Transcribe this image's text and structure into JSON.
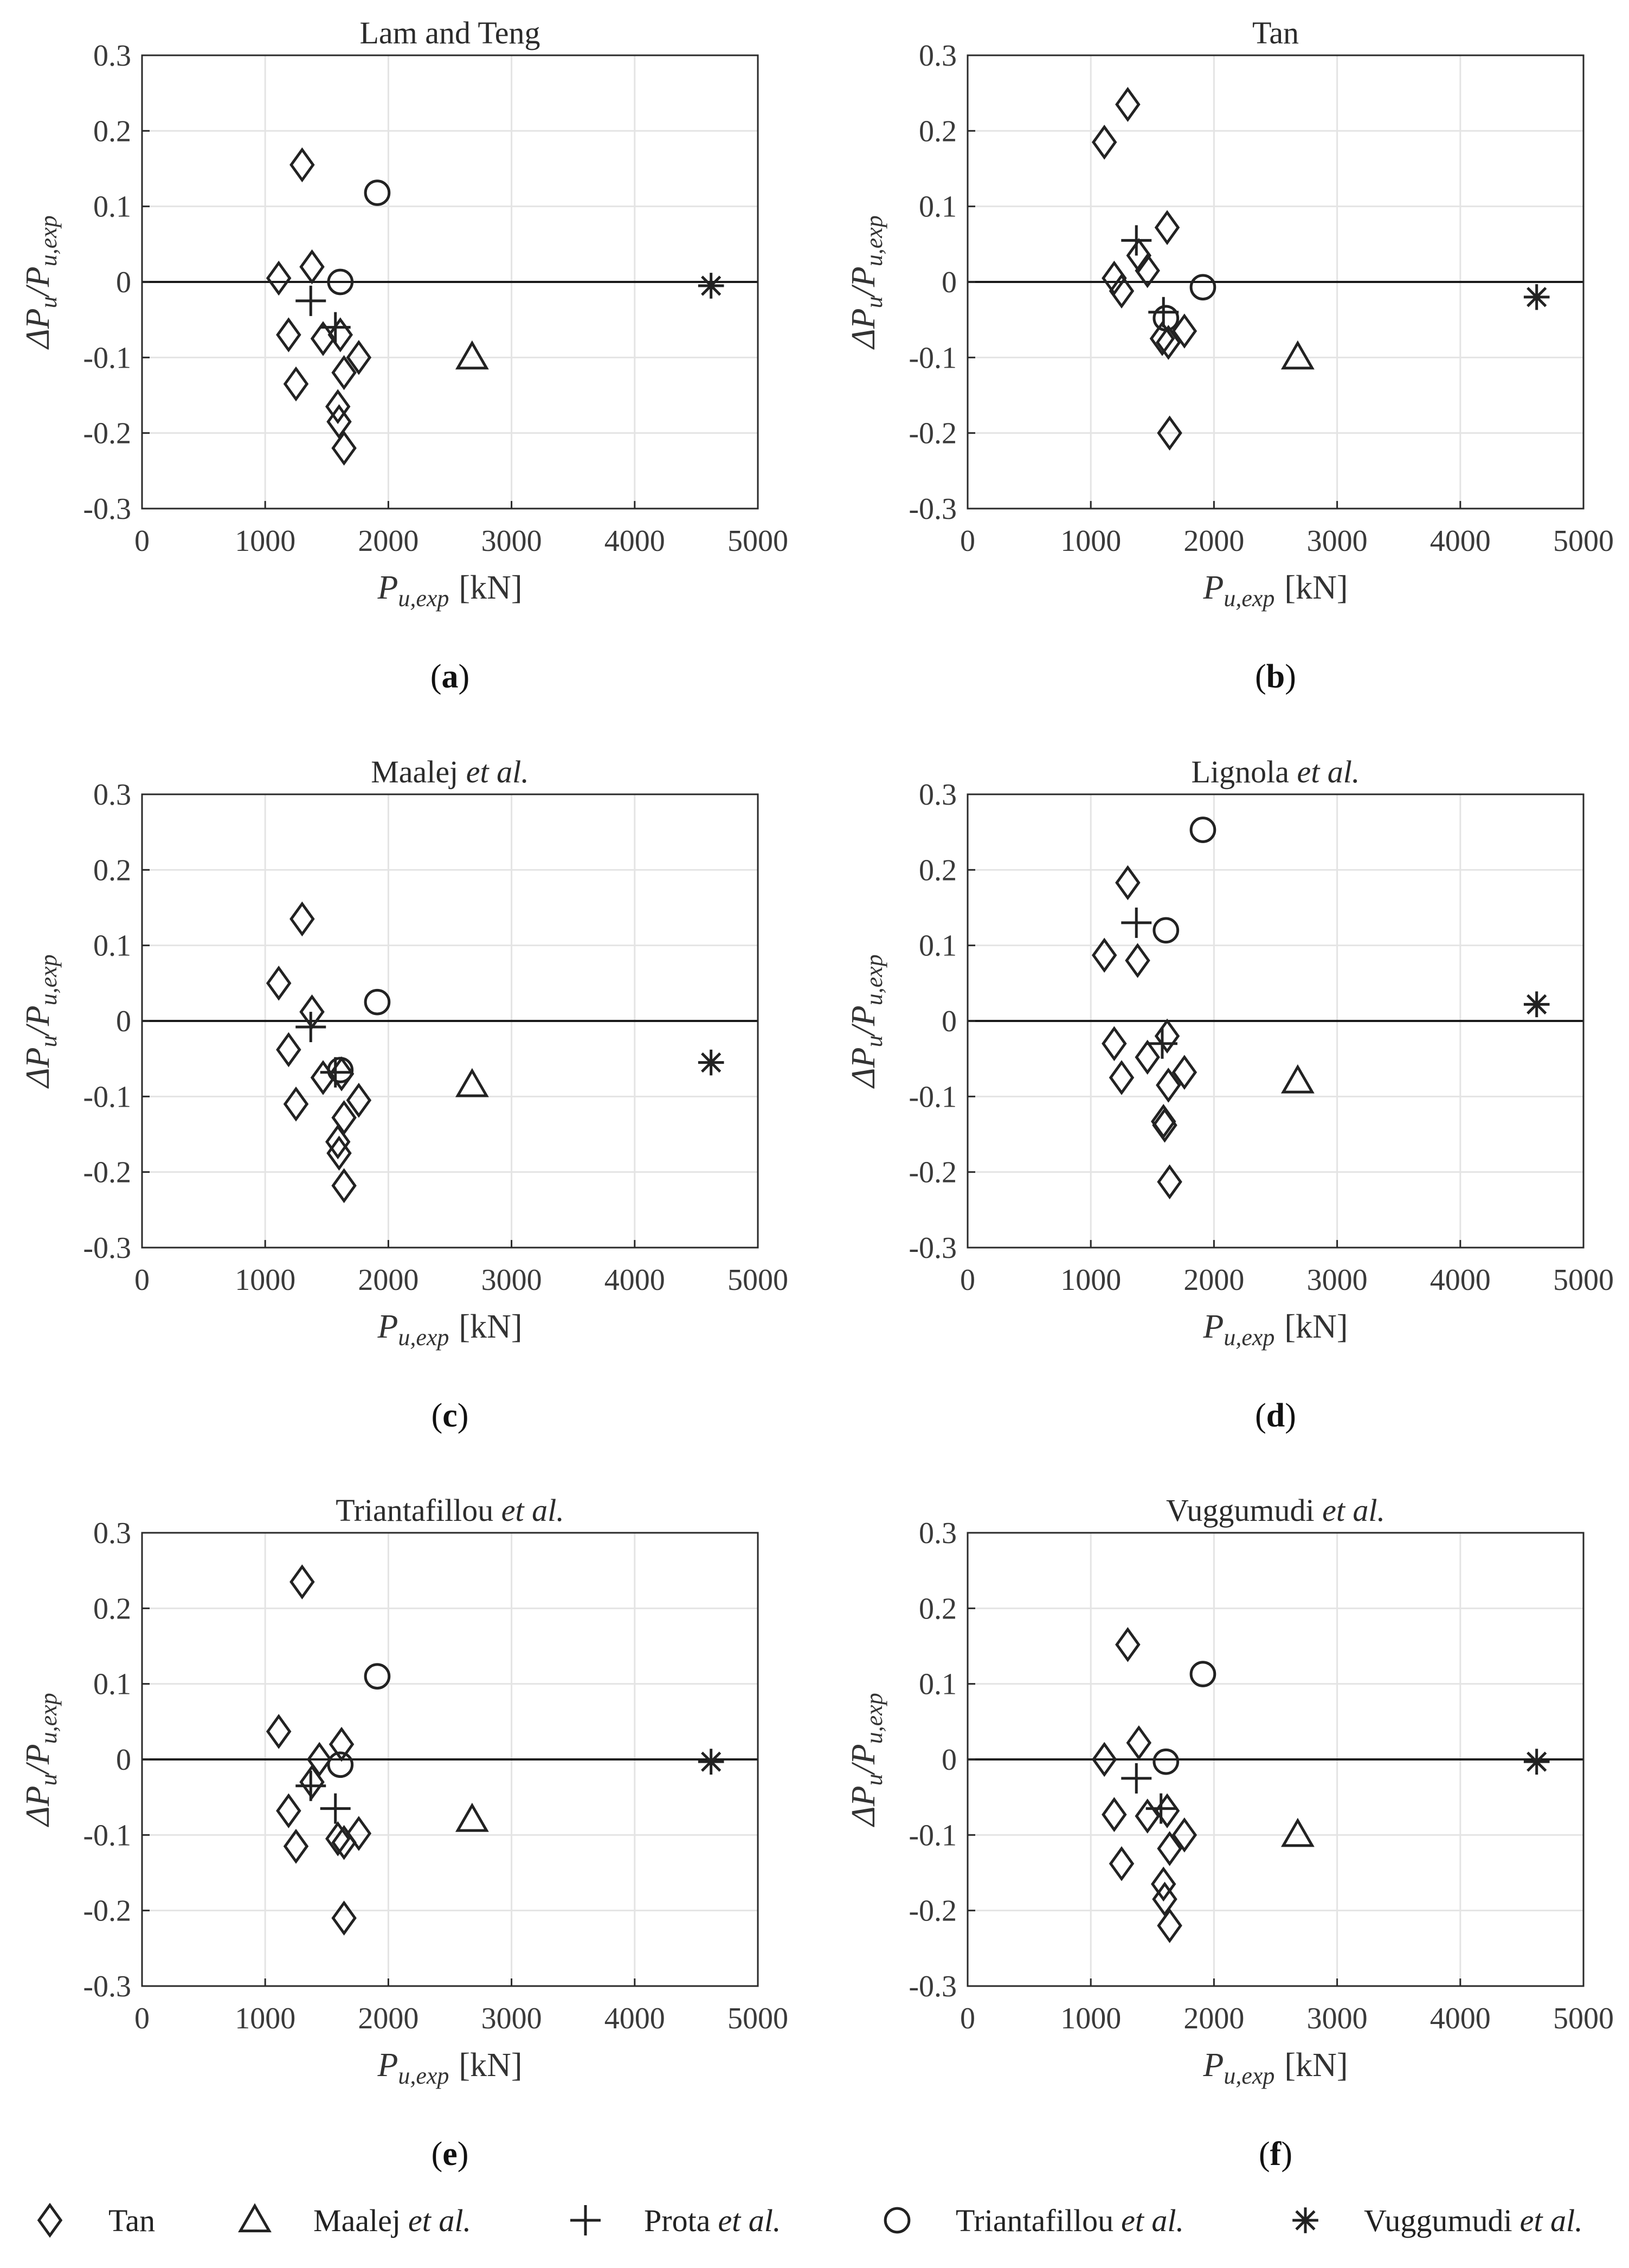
{
  "figure": {
    "x_axis_label_main": "P",
    "x_axis_label_sub": "u,exp",
    "x_axis_label_unit": "[kN]",
    "y_axis_label_delta": "ΔP",
    "y_axis_label_sub1": "u",
    "y_axis_label_sep": "/P",
    "y_axis_label_sub2": "u,exp"
  },
  "legend": [
    {
      "marker": "diamond",
      "label_main": "Tan",
      "label_etal": ""
    },
    {
      "marker": "triangle",
      "label_main": "Maalej",
      "label_etal": "et al."
    },
    {
      "marker": "plus",
      "label_main": "Prota",
      "label_etal": "et al."
    },
    {
      "marker": "circle",
      "label_main": "Triantafillou",
      "label_etal": "et al."
    },
    {
      "marker": "asterisk",
      "label_main": "Vuggumudi",
      "label_etal": "et al."
    }
  ],
  "chart_data": [
    {
      "type": "scatter",
      "panel": "a",
      "caption": "a",
      "title_main": "Lam and Teng",
      "title_etal": "",
      "xlim": [
        0,
        5000
      ],
      "ylim": [
        -0.3,
        0.3
      ],
      "xticks": [
        "0",
        "1000",
        "2000",
        "3000",
        "4000",
        "5000"
      ],
      "yticks": [
        "0.3",
        "0.2",
        "0.1",
        "0",
        "-0.1",
        "-0.2",
        "-0.3"
      ],
      "grid": true,
      "series": [
        {
          "name": "Tan",
          "marker": "diamond",
          "points": [
            [
              1300,
              0.155
            ],
            [
              1380,
              0.02
            ],
            [
              1110,
              0.005
            ],
            [
              1190,
              -0.07
            ],
            [
              1250,
              -0.135
            ],
            [
              1470,
              -0.075
            ],
            [
              1610,
              -0.07
            ],
            [
              1640,
              -0.12
            ],
            [
              1760,
              -0.1
            ],
            [
              1590,
              -0.165
            ],
            [
              1600,
              -0.185
            ],
            [
              1640,
              -0.22
            ]
          ]
        },
        {
          "name": "Maalej et al.",
          "marker": "triangle",
          "points": [
            [
              2680,
              -0.1
            ]
          ]
        },
        {
          "name": "Prota et al.",
          "marker": "plus",
          "points": [
            [
              1370,
              -0.025
            ],
            [
              1570,
              -0.06
            ]
          ]
        },
        {
          "name": "Triantafillou et al.",
          "marker": "circle",
          "points": [
            [
              1910,
              0.118
            ],
            [
              1610,
              0.0
            ]
          ]
        },
        {
          "name": "Vuggumudi et al.",
          "marker": "asterisk",
          "points": [
            [
              4620,
              -0.005
            ]
          ]
        }
      ]
    },
    {
      "type": "scatter",
      "panel": "b",
      "caption": "b",
      "title_main": "Tan",
      "title_etal": "",
      "xlim": [
        0,
        5000
      ],
      "ylim": [
        -0.3,
        0.3
      ],
      "xticks": [
        "0",
        "1000",
        "2000",
        "3000",
        "4000",
        "5000"
      ],
      "yticks": [
        "0.3",
        "0.2",
        "0.1",
        "0",
        "-0.1",
        "-0.2",
        "-0.3"
      ],
      "grid": true,
      "series": [
        {
          "name": "Tan",
          "marker": "diamond",
          "points": [
            [
              1300,
              0.235
            ],
            [
              1110,
              0.185
            ],
            [
              1620,
              0.072
            ],
            [
              1390,
              0.035
            ],
            [
              1460,
              0.015
            ],
            [
              1190,
              0.005
            ],
            [
              1250,
              -0.012
            ],
            [
              1580,
              -0.075
            ],
            [
              1630,
              -0.08
            ],
            [
              1760,
              -0.065
            ],
            [
              1640,
              -0.2
            ]
          ]
        },
        {
          "name": "Maalej et al.",
          "marker": "triangle",
          "points": [
            [
              2680,
              -0.1
            ]
          ]
        },
        {
          "name": "Prota et al.",
          "marker": "plus",
          "points": [
            [
              1370,
              0.055
            ],
            [
              1590,
              -0.04
            ]
          ]
        },
        {
          "name": "Triantafillou et al.",
          "marker": "circle",
          "points": [
            [
              1910,
              -0.007
            ],
            [
              1610,
              -0.048
            ]
          ]
        },
        {
          "name": "Vuggumudi et al.",
          "marker": "asterisk",
          "points": [
            [
              4620,
              -0.02
            ]
          ]
        }
      ]
    },
    {
      "type": "scatter",
      "panel": "c",
      "caption": "c",
      "title_main": "Maalej ",
      "title_etal": "et al.",
      "xlim": [
        0,
        5000
      ],
      "ylim": [
        -0.3,
        0.3
      ],
      "xticks": [
        "0",
        "1000",
        "2000",
        "3000",
        "4000",
        "5000"
      ],
      "yticks": [
        "0.3",
        "0.2",
        "0.1",
        "0",
        "-0.1",
        "-0.2",
        "-0.3"
      ],
      "grid": true,
      "series": [
        {
          "name": "Tan",
          "marker": "diamond",
          "points": [
            [
              1300,
              0.135
            ],
            [
              1110,
              0.05
            ],
            [
              1380,
              0.012
            ],
            [
              1190,
              -0.038
            ],
            [
              1250,
              -0.11
            ],
            [
              1470,
              -0.075
            ],
            [
              1620,
              -0.07
            ],
            [
              1640,
              -0.128
            ],
            [
              1760,
              -0.105
            ],
            [
              1590,
              -0.16
            ],
            [
              1600,
              -0.175
            ],
            [
              1640,
              -0.218
            ]
          ]
        },
        {
          "name": "Maalej et al.",
          "marker": "triangle",
          "points": [
            [
              2680,
              -0.085
            ]
          ]
        },
        {
          "name": "Prota et al.",
          "marker": "plus",
          "points": [
            [
              1370,
              -0.008
            ],
            [
              1570,
              -0.068
            ]
          ]
        },
        {
          "name": "Triantafillou et al.",
          "marker": "circle",
          "points": [
            [
              1910,
              0.025
            ],
            [
              1610,
              -0.065
            ]
          ]
        },
        {
          "name": "Vuggumudi et al.",
          "marker": "asterisk",
          "points": [
            [
              4620,
              -0.055
            ]
          ]
        }
      ]
    },
    {
      "type": "scatter",
      "panel": "d",
      "caption": "d",
      "title_main": "Lignola ",
      "title_etal": "et al.",
      "xlim": [
        0,
        5000
      ],
      "ylim": [
        -0.3,
        0.3
      ],
      "xticks": [
        "0",
        "1000",
        "2000",
        "3000",
        "4000",
        "5000"
      ],
      "yticks": [
        "0.3",
        "0.2",
        "0.1",
        "0",
        "-0.1",
        "-0.2",
        "-0.3"
      ],
      "grid": true,
      "series": [
        {
          "name": "Tan",
          "marker": "diamond",
          "points": [
            [
              1300,
              0.183
            ],
            [
              1110,
              0.087
            ],
            [
              1380,
              0.08
            ],
            [
              1190,
              -0.03
            ],
            [
              1250,
              -0.075
            ],
            [
              1460,
              -0.048
            ],
            [
              1620,
              -0.02
            ],
            [
              1630,
              -0.085
            ],
            [
              1760,
              -0.068
            ],
            [
              1590,
              -0.133
            ],
            [
              1600,
              -0.138
            ],
            [
              1640,
              -0.213
            ]
          ]
        },
        {
          "name": "Maalej et al.",
          "marker": "triangle",
          "points": [
            [
              2680,
              -0.08
            ]
          ]
        },
        {
          "name": "Prota et al.",
          "marker": "plus",
          "points": [
            [
              1370,
              0.13
            ],
            [
              1580,
              -0.03
            ]
          ]
        },
        {
          "name": "Triantafillou et al.",
          "marker": "circle",
          "points": [
            [
              1910,
              0.253
            ],
            [
              1610,
              0.12
            ]
          ]
        },
        {
          "name": "Vuggumudi et al.",
          "marker": "asterisk",
          "points": [
            [
              4620,
              0.022
            ]
          ]
        }
      ]
    },
    {
      "type": "scatter",
      "panel": "e",
      "caption": "e",
      "title_main": "Triantafillou ",
      "title_etal": "et al.",
      "xlim": [
        0,
        5000
      ],
      "ylim": [
        -0.3,
        0.3
      ],
      "xticks": [
        "0",
        "1000",
        "2000",
        "3000",
        "4000",
        "5000"
      ],
      "yticks": [
        "0.3",
        "0.2",
        "0.1",
        "0",
        "-0.1",
        "-0.2",
        "-0.3"
      ],
      "grid": true,
      "series": [
        {
          "name": "Tan",
          "marker": "diamond",
          "points": [
            [
              1300,
              0.235
            ],
            [
              1110,
              0.037
            ],
            [
              1620,
              0.02
            ],
            [
              1440,
              0.0
            ],
            [
              1380,
              -0.03
            ],
            [
              1190,
              -0.068
            ],
            [
              1250,
              -0.115
            ],
            [
              1590,
              -0.105
            ],
            [
              1640,
              -0.11
            ],
            [
              1760,
              -0.098
            ],
            [
              1640,
              -0.21
            ]
          ]
        },
        {
          "name": "Maalej et al.",
          "marker": "triangle",
          "points": [
            [
              2680,
              -0.08
            ]
          ]
        },
        {
          "name": "Prota et al.",
          "marker": "plus",
          "points": [
            [
              1370,
              -0.035
            ],
            [
              1570,
              -0.065
            ]
          ]
        },
        {
          "name": "Triantafillou et al.",
          "marker": "circle",
          "points": [
            [
              1910,
              0.11
            ],
            [
              1610,
              -0.007
            ]
          ]
        },
        {
          "name": "Vuggumudi et al.",
          "marker": "asterisk",
          "points": [
            [
              4620,
              -0.003
            ]
          ]
        }
      ]
    },
    {
      "type": "scatter",
      "panel": "f",
      "caption": "f",
      "title_main": "Vuggumudi ",
      "title_etal": "et al.",
      "xlim": [
        0,
        5000
      ],
      "ylim": [
        -0.3,
        0.3
      ],
      "xticks": [
        "0",
        "1000",
        "2000",
        "3000",
        "4000",
        "5000"
      ],
      "yticks": [
        "0.3",
        "0.2",
        "0.1",
        "0",
        "-0.1",
        "-0.2",
        "-0.3"
      ],
      "grid": true,
      "series": [
        {
          "name": "Tan",
          "marker": "diamond",
          "points": [
            [
              1300,
              0.152
            ],
            [
              1390,
              0.022
            ],
            [
              1110,
              0.0
            ],
            [
              1190,
              -0.073
            ],
            [
              1250,
              -0.138
            ],
            [
              1460,
              -0.075
            ],
            [
              1620,
              -0.068
            ],
            [
              1640,
              -0.118
            ],
            [
              1760,
              -0.1
            ],
            [
              1590,
              -0.165
            ],
            [
              1600,
              -0.185
            ],
            [
              1640,
              -0.22
            ]
          ]
        },
        {
          "name": "Maalej et al.",
          "marker": "triangle",
          "points": [
            [
              2680,
              -0.1
            ]
          ]
        },
        {
          "name": "Prota et al.",
          "marker": "plus",
          "points": [
            [
              1370,
              -0.025
            ],
            [
              1570,
              -0.065
            ]
          ]
        },
        {
          "name": "Triantafillou et al.",
          "marker": "circle",
          "points": [
            [
              1910,
              0.113
            ],
            [
              1610,
              -0.003
            ]
          ]
        },
        {
          "name": "Vuggumudi et al.",
          "marker": "asterisk",
          "points": [
            [
              4620,
              -0.003
            ]
          ]
        }
      ]
    }
  ]
}
